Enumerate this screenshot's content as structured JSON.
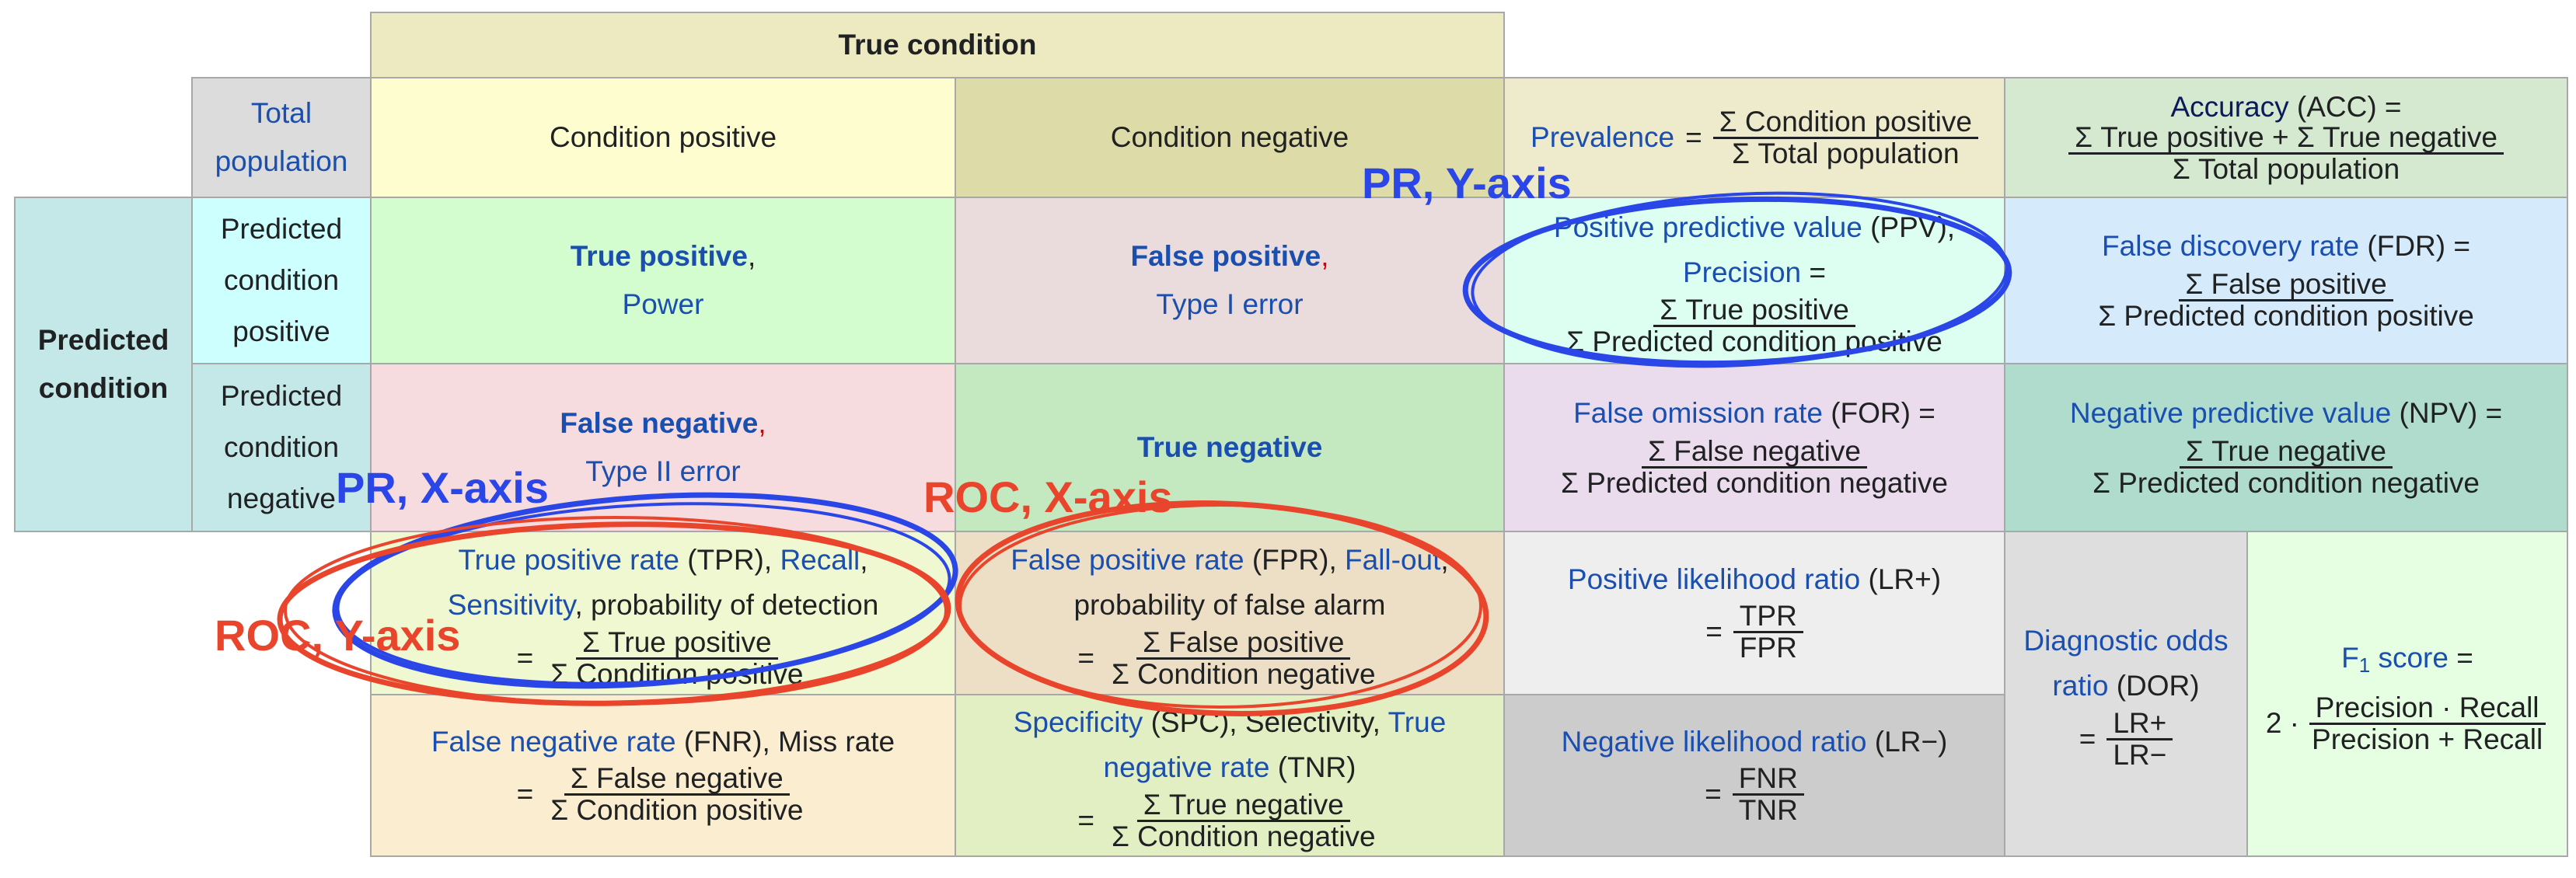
{
  "header": {
    "true_condition": "True condition",
    "predicted_condition": "Predicted condition"
  },
  "row0": {
    "total_population": "Total population",
    "condition_positive": "Condition positive",
    "condition_negative": "Condition negative",
    "prevalence_label": "Prevalence",
    "prevalence_eq": "=",
    "prevalence_num": "Σ Condition positive",
    "prevalence_den": "Σ Total population",
    "accuracy_label": "Accuracy",
    "accuracy_abbr": "(ACC) =",
    "accuracy_num": "Σ True positive + Σ True negative",
    "accuracy_den": "Σ Total population"
  },
  "row1": {
    "label": "Predicted condition positive",
    "tp_title": "True positive",
    "tp_comma": ",",
    "tp_sub": "Power",
    "fp_title": "False positive",
    "fp_comma": ",",
    "fp_sub": "Type I error",
    "ppv_label": "Positive predictive value",
    "ppv_abbr": "(PPV),",
    "precision_label": "Precision",
    "precision_eq": "=",
    "ppv_num": "Σ True positive",
    "ppv_den": "Σ Predicted condition positive",
    "fdr_label": "False discovery rate",
    "fdr_abbr": "(FDR) =",
    "fdr_num": "Σ False positive",
    "fdr_den": "Σ Predicted condition positive"
  },
  "row2": {
    "label": "Predicted condition negative",
    "fn_title": "False negative",
    "fn_comma": ",",
    "fn_sub": "Type II error",
    "tn_title": "True negative",
    "for_label": "False omission rate",
    "for_abbr": "(FOR) =",
    "for_num": "Σ False negative",
    "for_den": "Σ Predicted condition negative",
    "npv_label": "Negative predictive value",
    "npv_abbr": "(NPV) =",
    "npv_num": "Σ True negative",
    "npv_den": "Σ Predicted condition negative"
  },
  "row3": {
    "tpr_label": "True positive rate",
    "tpr_abbr": "(TPR),",
    "recall_label": "Recall",
    "recall_comma": ",",
    "sensitivity_label": "Sensitivity",
    "sensitivity_rest": ", probability of detection",
    "tpr_eq": "=",
    "tpr_num": "Σ True positive",
    "tpr_den": "Σ Condition positive",
    "fpr_label": "False positive rate",
    "fpr_abbr": "(FPR),",
    "fallout_label": "Fall-out",
    "fallout_comma": ",",
    "fpr_desc": "probability of false alarm",
    "fpr_eq": "=",
    "fpr_num": "Σ False positive",
    "fpr_den": "Σ Condition negative",
    "lrp_label": "Positive likelihood ratio",
    "lrp_abbr": "(LR+)",
    "lrp_eq": "=",
    "lrp_num": "TPR",
    "lrp_den": "FPR"
  },
  "row4": {
    "fnr_label": "False negative rate",
    "fnr_abbr": "(FNR), Miss rate",
    "fnr_eq": "=",
    "fnr_num": "Σ False negative",
    "fnr_den": "Σ Condition positive",
    "spc_label": "Specificity",
    "spc_abbr": "(SPC), Selectivity,",
    "tnr_label_a": "True",
    "tnr_label_b": "negative rate",
    "tnr_abbr": "(TNR)",
    "spc_eq": "=",
    "spc_num": "Σ True negative",
    "spc_den": "Σ Condition negative",
    "lrn_label": "Negative likelihood ratio",
    "lrn_abbr": "(LR−)",
    "lrn_eq": "=",
    "lrn_num": "FNR",
    "lrn_den": "TNR"
  },
  "dor": {
    "label_a": "Diagnostic odds",
    "label_b": "ratio",
    "abbr": "(DOR)",
    "eq": "=",
    "num": "LR+",
    "den": "LR−"
  },
  "f1": {
    "label_f": "F",
    "label_sub": "1",
    "label_rest": "score",
    "eq": "=",
    "coef": "2 ·",
    "num": "Precision · Recall",
    "den": "Precision + Recall"
  },
  "annotations": {
    "pr_y": "PR, Y-axis",
    "pr_x": "PR, X-axis",
    "roc_x": "ROC, X-axis",
    "roc_y": "ROC, Y-axis"
  },
  "colors": {
    "blue_annotation": "#2b46e6",
    "orange_annotation": "#e8452c",
    "link_blue": "#1a4fb0"
  }
}
